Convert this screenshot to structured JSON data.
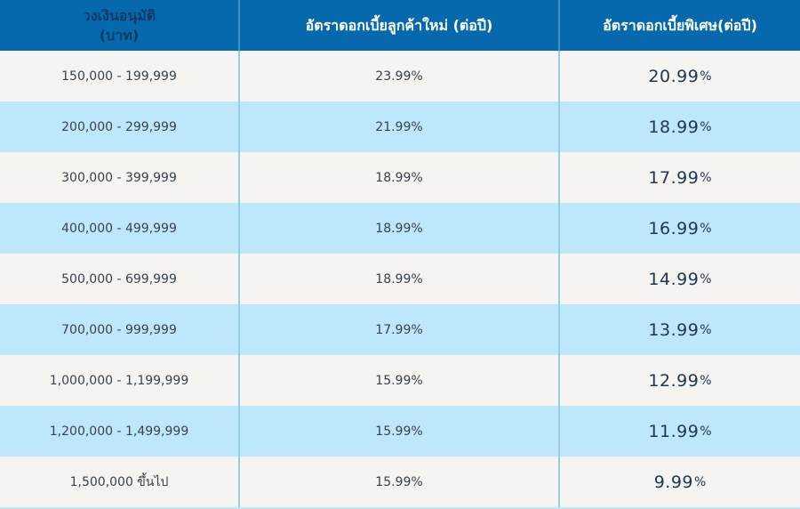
{
  "header": {
    "col1_line1": "วงเงินอนุมัติ",
    "col1_line2": "(บาท)",
    "col2": "อัตราดอกเบี้ยลูกค้าใหม่ (ต่อปี)",
    "col3": "อัตราดอกเบี้ยพิเศษ(ต่อปี)"
  },
  "rows": [
    {
      "limit": "150,000 - 199,999",
      "new_rate": "23.99%",
      "special_value": "20.99",
      "special_unit": "%"
    },
    {
      "limit": "200,000 - 299,999",
      "new_rate": "21.99%",
      "special_value": "18.99",
      "special_unit": "%"
    },
    {
      "limit": "300,000 - 399,999",
      "new_rate": "18.99%",
      "special_value": "17.99",
      "special_unit": "%"
    },
    {
      "limit": "400,000 - 499,999",
      "new_rate": "18.99%",
      "special_value": "16.99",
      "special_unit": "%"
    },
    {
      "limit": "500,000 - 699,999",
      "new_rate": "18.99%",
      "special_value": "14.99",
      "special_unit": "%"
    },
    {
      "limit": "700,000 - 999,999",
      "new_rate": "17.99%",
      "special_value": "13.99",
      "special_unit": "%"
    },
    {
      "limit": "1,000,000 - 1,199,999",
      "new_rate": "15.99%",
      "special_value": "12.99",
      "special_unit": "%"
    },
    {
      "limit": "1,200,000 - 1,499,999",
      "new_rate": "15.99%",
      "special_value": "11.99",
      "special_unit": "%"
    },
    {
      "limit": "1,500,000 ขึ้นไป",
      "new_rate": "15.99%",
      "special_value": "9.99",
      "special_unit": "%"
    }
  ],
  "colors": {
    "header_bg": "#0669AD",
    "header_text_col1": "#0D3B64",
    "header_text": "#FFFFFF",
    "row_gray": "#F5F4F1",
    "row_blue": "#BDE8FC",
    "body_text": "#39434D",
    "special_text": "#203750",
    "divider_header": "#3E92C0",
    "divider_body": "#95CEE4"
  },
  "chart_data": {
    "type": "table",
    "columns": [
      "วงเงินอนุมัติ (บาท)",
      "อัตราดอกเบี้ยลูกค้าใหม่ (ต่อปี)",
      "อัตราดอกเบี้ยพิเศษ(ต่อปี)"
    ],
    "rows": [
      [
        "150,000 - 199,999",
        23.99,
        20.99
      ],
      [
        "200,000 - 299,999",
        21.99,
        18.99
      ],
      [
        "300,000 - 399,999",
        18.99,
        17.99
      ],
      [
        "400,000 - 499,999",
        18.99,
        16.99
      ],
      [
        "500,000 - 699,999",
        18.99,
        14.99
      ],
      [
        "700,000 - 999,999",
        17.99,
        13.99
      ],
      [
        "1,000,000 - 1,199,999",
        15.99,
        12.99
      ],
      [
        "1,200,000 - 1,499,999",
        15.99,
        11.99
      ],
      [
        "1,500,000 ขึ้นไป",
        15.99,
        9.99
      ]
    ],
    "unit": "% ต่อปี",
    "layout": "striped rows alternating gray/light-blue, blue header band, 3 columns"
  }
}
